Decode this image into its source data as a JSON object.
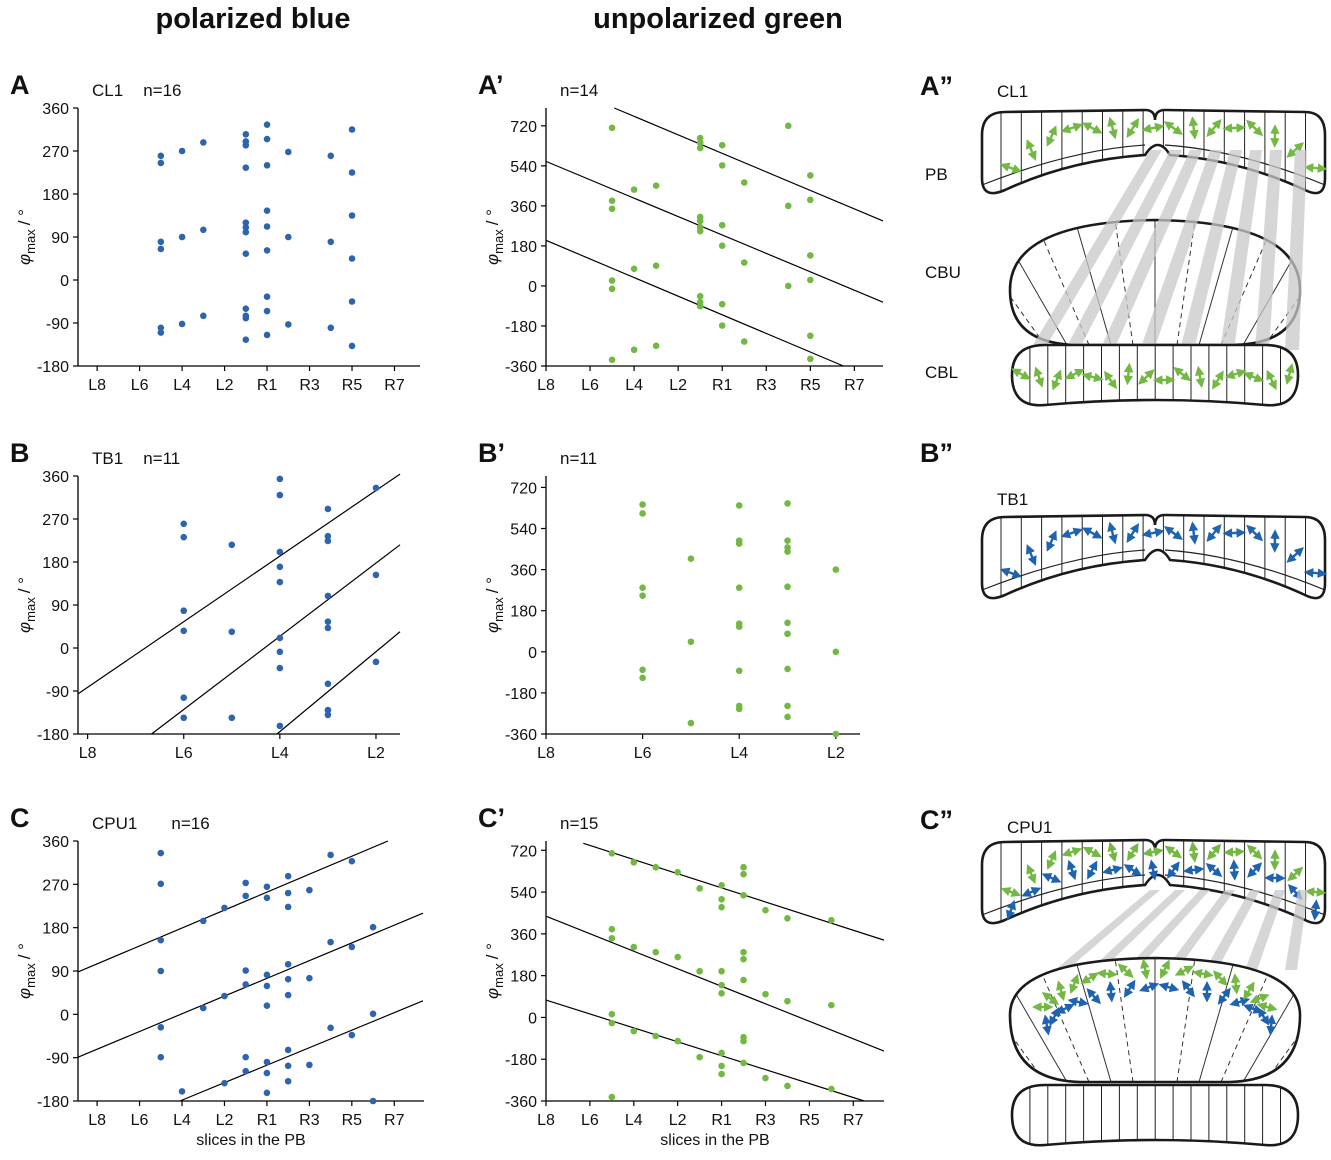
{
  "column_titles": [
    "polarized blue",
    "unpolarized green"
  ],
  "chart_data": [
    {
      "type": "scatter",
      "panel": "A",
      "annotations": [
        "CL1",
        "n=16"
      ],
      "color": "#2e64ae",
      "xlim": [
        -0.9,
        15.2
      ],
      "xticks": [
        {
          "value": 0,
          "label": "L8"
        },
        {
          "value": 2,
          "label": "L6"
        },
        {
          "value": 4,
          "label": "L4"
        },
        {
          "value": 6,
          "label": "L2"
        },
        {
          "value": 8,
          "label": "R1"
        },
        {
          "value": 10,
          "label": "R3"
        },
        {
          "value": 12,
          "label": "R5"
        },
        {
          "value": 14,
          "label": "R7"
        }
      ],
      "ylim": [
        -180,
        360
      ],
      "yticks": [
        -180,
        -90,
        0,
        90,
        180,
        270,
        360
      ],
      "ylabel": {
        "symbol": "φ",
        "sub": "max",
        "unit": "/ °"
      },
      "x": [
        3,
        3,
        3,
        3,
        3,
        3,
        4,
        4,
        4,
        5,
        5,
        5,
        7,
        7,
        7,
        7,
        7,
        7,
        7,
        7,
        7,
        7,
        7,
        7,
        8,
        8,
        8,
        8,
        8,
        8,
        8,
        8,
        8,
        9,
        9,
        9,
        11,
        11,
        11,
        12,
        12,
        12,
        12,
        12,
        12
      ],
      "values": [
        260,
        245,
        80,
        65,
        -100,
        -110,
        270,
        90,
        -92,
        288,
        105,
        -75,
        305,
        290,
        282,
        235,
        120,
        110,
        100,
        55,
        -60,
        -75,
        -80,
        -125,
        325,
        295,
        240,
        145,
        112,
        62,
        -35,
        -65,
        -115,
        268,
        90,
        -93,
        260,
        80,
        -100,
        315,
        225,
        135,
        45,
        -45,
        -138
      ]
    },
    {
      "type": "scatter",
      "panel": "A’",
      "annotations": [
        "n=14"
      ],
      "color": "#72b843",
      "xlim": [
        0,
        15.3
      ],
      "xticks": [
        {
          "value": 0,
          "label": "L8"
        },
        {
          "value": 2,
          "label": "L6"
        },
        {
          "value": 4,
          "label": "L4"
        },
        {
          "value": 6,
          "label": "L2"
        },
        {
          "value": 8,
          "label": "R1"
        },
        {
          "value": 10,
          "label": "R3"
        },
        {
          "value": 12,
          "label": "R5"
        },
        {
          "value": 14,
          "label": "R7"
        }
      ],
      "ylim": [
        -360,
        800
      ],
      "yticks": [
        -360,
        -180,
        0,
        180,
        360,
        540,
        720
      ],
      "ylabel": {
        "symbol": "φ",
        "sub": "max",
        "unit": "/ °"
      },
      "x": [
        3,
        3,
        3,
        3,
        3,
        3,
        4,
        4,
        4,
        5,
        5,
        5,
        7,
        7,
        7,
        7,
        7,
        7,
        7,
        7,
        7,
        7,
        8,
        8,
        8,
        8,
        8,
        8,
        9,
        9,
        9,
        11,
        11,
        11,
        12,
        12,
        12,
        12,
        12,
        12
      ],
      "values": [
        711,
        383,
        347,
        24,
        -13,
        -332,
        433,
        77,
        -287,
        451,
        91,
        -269,
        665,
        643,
        620,
        310,
        292,
        264,
        246,
        -46,
        -73,
        -91,
        633,
        542,
        273,
        181,
        -82,
        -178,
        465,
        105,
        -250,
        720,
        360,
        0,
        497,
        387,
        137,
        27,
        -224,
        -328
      ],
      "lines": [
        {
          "x": [
            3.1,
            15.3
          ],
          "values": [
            800,
            292
          ]
        },
        {
          "x": [
            0,
            15.3
          ],
          "values": [
            560,
            -73
          ]
        },
        {
          "x": [
            0,
            13.5
          ],
          "values": [
            205,
            -360
          ]
        }
      ]
    },
    {
      "type": "scatter",
      "panel": "B",
      "annotations": [
        "TB1",
        "n=11"
      ],
      "color": "#2e64ae",
      "xlim": [
        -0.2,
        6.5
      ],
      "xticks": [
        {
          "value": 0,
          "label": "L8"
        },
        {
          "value": 2,
          "label": "L6"
        },
        {
          "value": 4,
          "label": "L4"
        },
        {
          "value": 6,
          "label": "L2"
        }
      ],
      "ylim": [
        -180,
        360
      ],
      "yticks": [
        -180,
        -90,
        0,
        90,
        180,
        270,
        360
      ],
      "ylabel": {
        "symbol": "φ",
        "sub": "max",
        "unit": "/ °"
      },
      "x": [
        2,
        2,
        2,
        2,
        2,
        2,
        3,
        3,
        3,
        4,
        4,
        4,
        4,
        4,
        4,
        4,
        4,
        4,
        5,
        5,
        5,
        5,
        5,
        5,
        5,
        5,
        5,
        6,
        6,
        6
      ],
      "values": [
        260,
        232,
        78,
        36,
        -104,
        -146,
        216,
        34,
        -146,
        354,
        320,
        201,
        170,
        138,
        21,
        -8,
        -42,
        -163,
        291,
        234,
        224,
        109,
        55,
        42,
        -75,
        -130,
        -140,
        335,
        153,
        -29
      ],
      "lines": [
        {
          "x": [
            -0.2,
            6.5
          ],
          "values": [
            -96,
            364
          ]
        },
        {
          "x": [
            1.33,
            6.5
          ],
          "values": [
            -180,
            216
          ]
        },
        {
          "x": [
            3.94,
            6.5
          ],
          "values": [
            -180,
            34
          ]
        }
      ]
    },
    {
      "type": "scatter",
      "panel": "B’",
      "annotations": [
        "n=11"
      ],
      "color": "#72b843",
      "xlim": [
        0,
        6.5
      ],
      "xticks": [
        {
          "value": 0,
          "label": "L8"
        },
        {
          "value": 2,
          "label": "L6"
        },
        {
          "value": 4,
          "label": "L4"
        },
        {
          "value": 6,
          "label": "L2"
        }
      ],
      "ylim": [
        -360,
        770
      ],
      "yticks": [
        -360,
        -180,
        0,
        180,
        360,
        540,
        720
      ],
      "ylabel": {
        "symbol": "φ",
        "sub": "max",
        "unit": "/ °"
      },
      "x": [
        2,
        2,
        2,
        2,
        2,
        2,
        3,
        3,
        3,
        4,
        4,
        4,
        4,
        4,
        4,
        4,
        4,
        4,
        5,
        5,
        5,
        5,
        5,
        5,
        5,
        5,
        5,
        5,
        6,
        6,
        6
      ],
      "values": [
        645,
        606,
        281,
        246,
        -79,
        -114,
        408,
        44,
        -312,
        641,
        487,
        474,
        281,
        123,
        110,
        -83,
        -237,
        -250,
        650,
        487,
        457,
        439,
        285,
        127,
        79,
        -75,
        -237,
        -285,
        360,
        0,
        -360
      ]
    },
    {
      "type": "scatter",
      "panel": "C",
      "annotations": [
        "CPU1",
        "n=16"
      ],
      "color": "#2e64ae",
      "xlabel": "slices in the PB",
      "xlim": [
        -0.9,
        15.4
      ],
      "xticks": [
        {
          "value": 0,
          "label": "L8"
        },
        {
          "value": 2,
          "label": "L6"
        },
        {
          "value": 4,
          "label": "L4"
        },
        {
          "value": 6,
          "label": "L2"
        },
        {
          "value": 8,
          "label": "R1"
        },
        {
          "value": 10,
          "label": "R3"
        },
        {
          "value": 12,
          "label": "R5"
        },
        {
          "value": 14,
          "label": "R7"
        }
      ],
      "ylim": [
        -180,
        360
      ],
      "yticks": [
        -180,
        -90,
        0,
        90,
        180,
        270,
        360
      ],
      "ylabel": {
        "symbol": "φ",
        "sub": "max",
        "unit": "/ °"
      },
      "x": [
        3,
        3,
        3,
        3,
        3,
        3,
        4,
        5,
        5,
        6,
        6,
        6,
        7,
        7,
        7,
        7,
        7,
        7,
        8,
        8,
        8,
        8,
        8,
        8,
        8,
        8,
        9,
        9,
        9,
        9,
        9,
        9,
        9,
        9,
        9,
        10,
        10,
        10,
        11,
        11,
        11,
        12,
        12,
        12,
        13,
        13,
        13
      ],
      "values": [
        335,
        271,
        154,
        90,
        -27,
        -89,
        -160,
        194,
        13,
        221,
        38,
        -143,
        273,
        246,
        91,
        62,
        -89,
        -118,
        265,
        242,
        82,
        59,
        18,
        -99,
        -122,
        -163,
        287,
        252,
        223,
        104,
        73,
        40,
        -74,
        -107,
        -139,
        258,
        75,
        -105,
        331,
        150,
        -28,
        318,
        140,
        -43,
        181,
        1,
        -180
      ],
      "lines": [
        {
          "x": [
            -0.9,
            13.7
          ],
          "values": [
            88,
            360
          ]
        },
        {
          "x": [
            -0.9,
            15.35
          ],
          "values": [
            -89,
            210
          ]
        },
        {
          "x": [
            3.9,
            15.35
          ],
          "values": [
            -180,
            28
          ]
        }
      ]
    },
    {
      "type": "scatter",
      "panel": "C’",
      "annotations": [
        "n=15"
      ],
      "color": "#72b843",
      "xlabel": "slices in the PB",
      "xlim": [
        0,
        15.4
      ],
      "xticks": [
        {
          "value": 0,
          "label": "L8"
        },
        {
          "value": 2,
          "label": "L6"
        },
        {
          "value": 4,
          "label": "L4"
        },
        {
          "value": 6,
          "label": "L2"
        },
        {
          "value": 8,
          "label": "R1"
        },
        {
          "value": 10,
          "label": "R3"
        },
        {
          "value": 12,
          "label": "R5"
        },
        {
          "value": 14,
          "label": "R7"
        }
      ],
      "ylim": [
        -360,
        760
      ],
      "yticks": [
        -360,
        -180,
        0,
        180,
        360,
        540,
        720
      ],
      "ylabel": {
        "symbol": "φ",
        "sub": "max",
        "unit": "/ °"
      },
      "x": [
        3,
        3,
        3,
        3,
        3,
        3,
        4,
        4,
        4,
        5,
        5,
        5,
        6,
        6,
        6,
        7,
        7,
        7,
        8,
        8,
        8,
        8,
        8,
        8,
        8,
        8,
        8,
        9,
        9,
        9,
        9,
        9,
        9,
        9,
        9,
        9,
        10,
        10,
        10,
        11,
        11,
        11,
        13,
        13,
        13
      ],
      "values": [
        707,
        380,
        341,
        14,
        -24,
        -343,
        668,
        303,
        -59,
        647,
        281,
        -80,
        625,
        260,
        -102,
        556,
        199,
        -171,
        569,
        509,
        475,
        199,
        139,
        104,
        -153,
        -209,
        -244,
        647,
        617,
        526,
        281,
        251,
        161,
        -85,
        -102,
        -196,
        462,
        100,
        -261,
        427,
        70,
        -295,
        419,
        53,
        -308
      ],
      "lines": [
        {
          "x": [
            1.7,
            15.4
          ],
          "values": [
            750,
            333
          ]
        },
        {
          "x": [
            0,
            15.4
          ],
          "values": [
            436,
            -145
          ]
        },
        {
          "x": [
            0,
            14.5
          ],
          "values": [
            75,
            -360
          ]
        }
      ]
    }
  ],
  "diagrams": [
    {
      "panel": "A”",
      "labels": [
        "CL1",
        "PB",
        "CBU",
        "CBL"
      ]
    },
    {
      "panel": "B”",
      "labels": [
        "TB1"
      ]
    },
    {
      "panel": "C”",
      "labels": [
        "CPU1"
      ]
    }
  ]
}
